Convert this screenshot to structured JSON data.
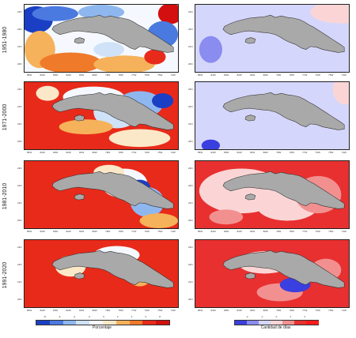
{
  "rows": [
    {
      "period": "1951-1980"
    },
    {
      "period": "1971-2000"
    },
    {
      "period": "1981-2010"
    },
    {
      "period": "1991-2020"
    }
  ],
  "lat_ticks": [
    "23N",
    "22N",
    "21N",
    "20N"
  ],
  "lon_ticks": [
    "85W",
    "84W",
    "83W",
    "82W",
    "81W",
    "80W",
    "79W",
    "78W",
    "77W",
    "76W",
    "75W",
    "74W"
  ],
  "left_colorbar": {
    "title": "Porcentaje",
    "ticks": [
      "-8",
      "-6",
      "-4",
      "-2",
      "0",
      "2",
      "4",
      "6",
      "8"
    ],
    "colors": [
      "#1a3fc4",
      "#4a7ae0",
      "#8fb7ef",
      "#cfe2f7",
      "#f5f9ff",
      "#fbe8c8",
      "#f5b25a",
      "#ef7a2a",
      "#e82a1a",
      "#d30f0f"
    ]
  },
  "right_colorbar": {
    "title": "Cantidad de días",
    "ticks": [
      "-2",
      "-1",
      "0",
      "1",
      "2"
    ],
    "colors": [
      "#3a3fe0",
      "#8a8cf0",
      "#d5d6fb",
      "#fbd5d5",
      "#f29090",
      "#e83030",
      "#ff1a1a"
    ]
  },
  "colors": {
    "island": "#a9a9a9",
    "island_edge": "#333333"
  }
}
